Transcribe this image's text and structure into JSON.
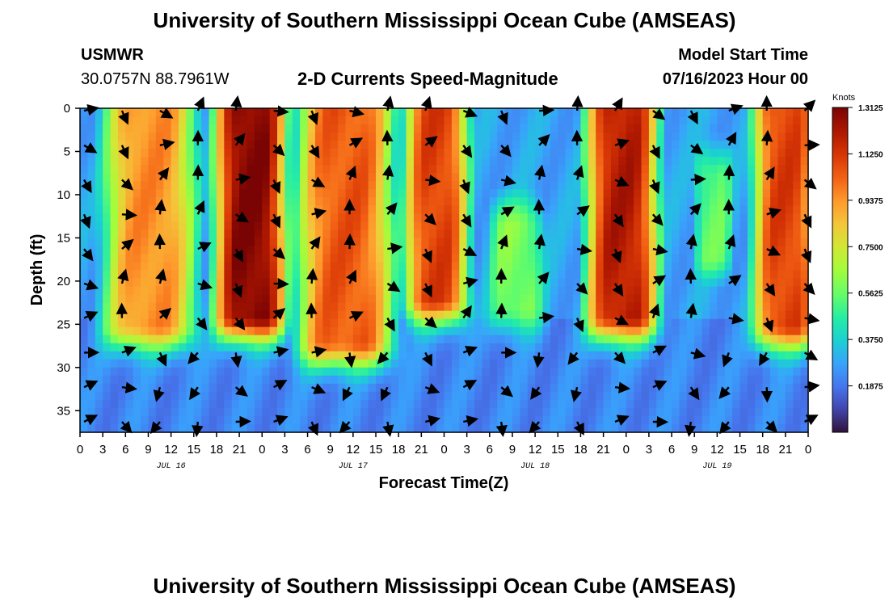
{
  "header": {
    "title": "University of Southern Mississippi Ocean Cube (AMSEAS)",
    "station": "USMWR",
    "coords": "30.0757N  88.7961W",
    "plot_title": "2-D Currents Speed-Magnitude",
    "start_label": "Model Start Time",
    "start_value": "07/16/2023 Hour 00"
  },
  "footer": {
    "title": "University of Southern Mississippi Ocean Cube (AMSEAS)"
  },
  "chart_data": {
    "type": "heatmap",
    "title": "2-D Currents Speed-Magnitude",
    "xlabel": "Forecast Time(Z)",
    "ylabel": "Depth (ft)",
    "x_ticks": [
      "0",
      "3",
      "6",
      "9",
      "12",
      "15",
      "18",
      "21",
      "0",
      "3",
      "6",
      "9",
      "12",
      "15",
      "18",
      "21",
      "0",
      "3",
      "6",
      "9",
      "12",
      "15",
      "18",
      "21",
      "0",
      "3",
      "6",
      "9",
      "12",
      "15",
      "18",
      "21",
      "0"
    ],
    "x_range_hours": [
      0,
      96
    ],
    "day_labels": [
      {
        "label": "JUL 16",
        "hour": 12
      },
      {
        "label": "JUL 17",
        "hour": 36
      },
      {
        "label": "JUL 18",
        "hour": 60
      },
      {
        "label": "JUL 19",
        "hour": 84
      }
    ],
    "y_ticks": [
      "0",
      "5",
      "10",
      "15",
      "20",
      "25",
      "30",
      "35"
    ],
    "ylim": [
      0,
      37.5
    ],
    "y_inverted": true,
    "colorbar": {
      "unit": "Knots",
      "min": 0,
      "max": 1.3125,
      "ticks": [
        "1.3125",
        "1.1250",
        "0.9375",
        "0.7500",
        "0.5625",
        "0.3750",
        "0.1875"
      ]
    },
    "speed_peaks": [
      {
        "hour_start": 4.5,
        "hour_end": 14,
        "depth_top": 0,
        "depth_bottom": 25,
        "speed": 0.95
      },
      {
        "hour_start": 19,
        "hour_end": 26,
        "depth_top": 0,
        "depth_bottom": 24,
        "speed": 1.3
      },
      {
        "hour_start": 30,
        "hour_end": 40,
        "depth_top": 0,
        "depth_bottom": 27,
        "speed": 1.05
      },
      {
        "hour_start": 44,
        "hour_end": 50,
        "depth_top": 0,
        "depth_bottom": 22,
        "speed": 1.1
      },
      {
        "hour_start": 55,
        "hour_end": 60,
        "depth_top": 14,
        "depth_bottom": 23,
        "speed": 0.6
      },
      {
        "hour_start": 68,
        "hour_end": 75,
        "depth_top": 0,
        "depth_bottom": 24,
        "speed": 1.2
      },
      {
        "hour_start": 82,
        "hour_end": 85,
        "depth_top": 8,
        "depth_bottom": 17,
        "speed": 0.55
      },
      {
        "hour_start": 90,
        "hour_end": 96,
        "depth_top": 0,
        "depth_bottom": 25,
        "speed": 1.1
      }
    ],
    "arrow_hours": [
      0,
      5,
      10,
      15,
      20,
      25,
      30,
      35,
      40,
      45,
      50,
      55,
      60,
      65,
      70,
      75,
      80,
      85,
      90,
      95
    ],
    "arrow_depths_ft": [
      0,
      4,
      8,
      12,
      16,
      20,
      24,
      28,
      32,
      36
    ]
  }
}
